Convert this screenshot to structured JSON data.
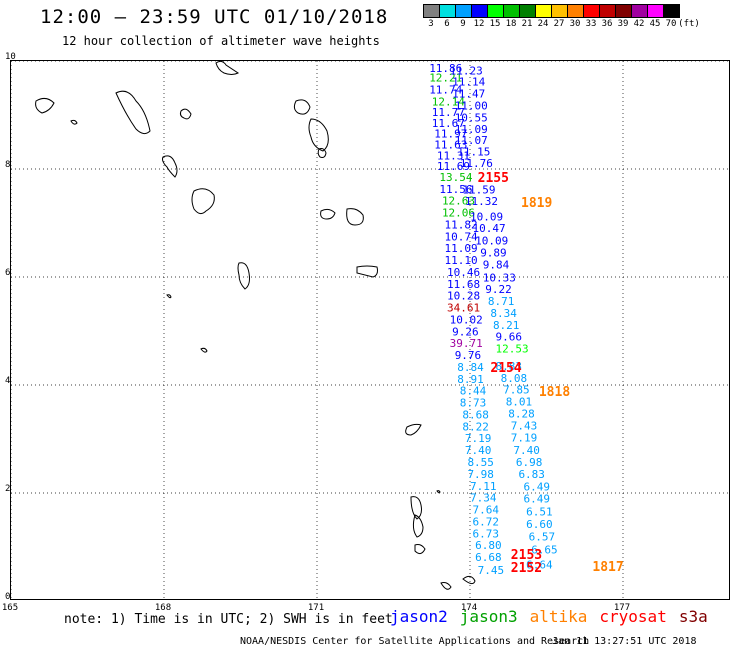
{
  "header": {
    "title": "12:00 – 23:59 UTC 01/10/2018",
    "subtitle": "12 hour collection of altimeter wave heights"
  },
  "legend": {
    "unit": "(ft)",
    "bins": [
      {
        "label": "3",
        "color": "#808080"
      },
      {
        "label": "6",
        "color": "#00e0e0"
      },
      {
        "label": "9",
        "color": "#00a0ff"
      },
      {
        "label": "12",
        "color": "#0000ff"
      },
      {
        "label": "15",
        "color": "#00ff00"
      },
      {
        "label": "18",
        "color": "#00c000"
      },
      {
        "label": "21",
        "color": "#008000"
      },
      {
        "label": "24",
        "color": "#ffff00"
      },
      {
        "label": "27",
        "color": "#ffc000"
      },
      {
        "label": "30",
        "color": "#ff8000"
      },
      {
        "label": "33",
        "color": "#ff0000"
      },
      {
        "label": "36",
        "color": "#c00000"
      },
      {
        "label": "39",
        "color": "#800000"
      },
      {
        "label": "42",
        "color": "#a000a0"
      },
      {
        "label": "45",
        "color": "#ff00ff"
      },
      {
        "label": "70",
        "color": "#000000"
      }
    ]
  },
  "axes": {
    "lon_labels": [
      "165",
      "168",
      "171",
      "174",
      "177"
    ],
    "lat_labels": [
      "0",
      "2",
      "4",
      "6",
      "8",
      "10"
    ],
    "lon_range": [
      165,
      179
    ],
    "lat_range": [
      0,
      10
    ],
    "grid": "dotted"
  },
  "tracks": {
    "left": [
      {
        "v": "11.86",
        "lat": 9.8,
        "c": "#0000ff",
        "lon": 173.2
      },
      {
        "v": "12.21",
        "lat": 9.62,
        "c": "#00c000",
        "lon": 173.2
      },
      {
        "v": "11.74",
        "lat": 9.4,
        "c": "#0000ff",
        "lon": 173.2
      },
      {
        "v": "12.14",
        "lat": 9.18,
        "c": "#00c000",
        "lon": 173.25
      },
      {
        "v": "11.77",
        "lat": 8.98,
        "c": "#0000ff",
        "lon": 173.25
      },
      {
        "v": "11.67",
        "lat": 8.78,
        "c": "#0000ff",
        "lon": 173.25
      },
      {
        "v": "11.97",
        "lat": 8.58,
        "c": "#0000ff",
        "lon": 173.3
      },
      {
        "v": "11.63",
        "lat": 8.38,
        "c": "#0000ff",
        "lon": 173.3
      },
      {
        "v": "11.31",
        "lat": 8.18,
        "c": "#0000ff",
        "lon": 173.35
      },
      {
        "v": "11.69",
        "lat": 7.98,
        "c": "#0000ff",
        "lon": 173.35
      },
      {
        "v": "13.54",
        "lat": 7.78,
        "c": "#00c000",
        "lon": 173.4
      },
      {
        "v": "11.56",
        "lat": 7.56,
        "c": "#0000ff",
        "lon": 173.4
      },
      {
        "v": "12.63",
        "lat": 7.34,
        "c": "#00c000",
        "lon": 173.45
      },
      {
        "v": "12.06",
        "lat": 7.12,
        "c": "#00c000",
        "lon": 173.45
      },
      {
        "v": "11.82",
        "lat": 6.9,
        "c": "#0000ff",
        "lon": 173.5
      },
      {
        "v": "10.74",
        "lat": 6.68,
        "c": "#0000ff",
        "lon": 173.5
      },
      {
        "v": "11.09",
        "lat": 6.46,
        "c": "#0000ff",
        "lon": 173.5
      },
      {
        "v": "11.10",
        "lat": 6.24,
        "c": "#0000ff",
        "lon": 173.5
      },
      {
        "v": "10.46",
        "lat": 6.02,
        "c": "#0000ff",
        "lon": 173.55
      },
      {
        "v": "11.68",
        "lat": 5.8,
        "c": "#0000ff",
        "lon": 173.55
      },
      {
        "v": "10.28",
        "lat": 5.58,
        "c": "#0000ff",
        "lon": 173.55
      },
      {
        "v": "34.61",
        "lat": 5.36,
        "c": "#c00000",
        "lon": 173.55
      },
      {
        "v": "10.02",
        "lat": 5.14,
        "c": "#0000ff",
        "lon": 173.6
      },
      {
        "v": "9.26",
        "lat": 4.92,
        "c": "#0000ff",
        "lon": 173.65
      },
      {
        "v": "39.71",
        "lat": 4.7,
        "c": "#a000a0",
        "lon": 173.6
      },
      {
        "v": "9.76",
        "lat": 4.48,
        "c": "#0000ff",
        "lon": 173.7
      },
      {
        "v": "8.84",
        "lat": 4.26,
        "c": "#00a0ff",
        "lon": 173.75
      },
      {
        "v": "8.91",
        "lat": 4.04,
        "c": "#00a0ff",
        "lon": 173.75
      },
      {
        "v": "8.44",
        "lat": 3.82,
        "c": "#00a0ff",
        "lon": 173.8
      },
      {
        "v": "8.73",
        "lat": 3.6,
        "c": "#00a0ff",
        "lon": 173.8
      },
      {
        "v": "8.68",
        "lat": 3.38,
        "c": "#00a0ff",
        "lon": 173.85
      },
      {
        "v": "8.22",
        "lat": 3.16,
        "c": "#00a0ff",
        "lon": 173.85
      },
      {
        "v": "7.19",
        "lat": 2.94,
        "c": "#00a0ff",
        "lon": 173.9
      },
      {
        "v": "7.40",
        "lat": 2.72,
        "c": "#00a0ff",
        "lon": 173.9
      },
      {
        "v": "8.55",
        "lat": 2.5,
        "c": "#00a0ff",
        "lon": 173.95
      },
      {
        "v": "7.98",
        "lat": 2.28,
        "c": "#00a0ff",
        "lon": 173.95
      },
      {
        "v": "7.11",
        "lat": 2.06,
        "c": "#00a0ff",
        "lon": 174.0
      },
      {
        "v": "7.34",
        "lat": 1.84,
        "c": "#00a0ff",
        "lon": 174.0
      },
      {
        "v": "7.64",
        "lat": 1.62,
        "c": "#00a0ff",
        "lon": 174.05
      },
      {
        "v": "6.72",
        "lat": 1.4,
        "c": "#00a0ff",
        "lon": 174.05
      },
      {
        "v": "6.73",
        "lat": 1.18,
        "c": "#00a0ff",
        "lon": 174.05
      },
      {
        "v": "6.80",
        "lat": 0.96,
        "c": "#00a0ff",
        "lon": 174.1
      },
      {
        "v": "6.68",
        "lat": 0.74,
        "c": "#00a0ff",
        "lon": 174.1
      },
      {
        "v": "7.45",
        "lat": 0.5,
        "c": "#00a0ff",
        "lon": 174.15
      }
    ],
    "right": [
      {
        "v": "11.23",
        "lat": 9.75,
        "c": "#0000ff",
        "lon": 173.6
      },
      {
        "v": "11.14",
        "lat": 9.55,
        "c": "#0000ff",
        "lon": 173.65
      },
      {
        "v": "11.47",
        "lat": 9.32,
        "c": "#0000ff",
        "lon": 173.65
      },
      {
        "v": "11.00",
        "lat": 9.1,
        "c": "#0000ff",
        "lon": 173.7
      },
      {
        "v": "10.55",
        "lat": 8.88,
        "c": "#0000ff",
        "lon": 173.7
      },
      {
        "v": "11.09",
        "lat": 8.67,
        "c": "#0000ff",
        "lon": 173.7
      },
      {
        "v": "11.07",
        "lat": 8.46,
        "c": "#0000ff",
        "lon": 173.7
      },
      {
        "v": "11.15",
        "lat": 8.25,
        "c": "#0000ff",
        "lon": 173.75
      },
      {
        "v": "11.76",
        "lat": 8.04,
        "c": "#0000ff",
        "lon": 173.8
      },
      {
        "v": "11.59",
        "lat": 7.55,
        "c": "#0000ff",
        "lon": 173.85
      },
      {
        "v": "11.32",
        "lat": 7.33,
        "c": "#0000ff",
        "lon": 173.9
      },
      {
        "v": "10.09",
        "lat": 7.05,
        "c": "#0000ff",
        "lon": 174.0
      },
      {
        "v": "10.47",
        "lat": 6.83,
        "c": "#0000ff",
        "lon": 174.05
      },
      {
        "v": "10.09",
        "lat": 6.6,
        "c": "#0000ff",
        "lon": 174.1
      },
      {
        "v": "9.89",
        "lat": 6.38,
        "c": "#0000ff",
        "lon": 174.2
      },
      {
        "v": "9.84",
        "lat": 6.16,
        "c": "#0000ff",
        "lon": 174.25
      },
      {
        "v": "10.33",
        "lat": 5.92,
        "c": "#0000ff",
        "lon": 174.25
      },
      {
        "v": "9.22",
        "lat": 5.7,
        "c": "#0000ff",
        "lon": 174.3
      },
      {
        "v": "8.71",
        "lat": 5.48,
        "c": "#00a0ff",
        "lon": 174.35
      },
      {
        "v": "8.34",
        "lat": 5.26,
        "c": "#00a0ff",
        "lon": 174.4
      },
      {
        "v": "8.21",
        "lat": 5.04,
        "c": "#00a0ff",
        "lon": 174.45
      },
      {
        "v": "9.66",
        "lat": 4.82,
        "c": "#0000ff",
        "lon": 174.5
      },
      {
        "v": "12.53",
        "lat": 4.6,
        "c": "#00ff00",
        "lon": 174.5
      },
      {
        "v": "8.83",
        "lat": 4.28,
        "c": "#00a0ff",
        "lon": 174.5
      },
      {
        "v": "8.08",
        "lat": 4.06,
        "c": "#00a0ff",
        "lon": 174.6
      },
      {
        "v": "7.85",
        "lat": 3.84,
        "c": "#00a0ff",
        "lon": 174.65
      },
      {
        "v": "8.01",
        "lat": 3.62,
        "c": "#00a0ff",
        "lon": 174.7
      },
      {
        "v": "8.28",
        "lat": 3.4,
        "c": "#00a0ff",
        "lon": 174.75
      },
      {
        "v": "7.43",
        "lat": 3.18,
        "c": "#00a0ff",
        "lon": 174.8
      },
      {
        "v": "7.19",
        "lat": 2.95,
        "c": "#00a0ff",
        "lon": 174.8
      },
      {
        "v": "7.40",
        "lat": 2.72,
        "c": "#00a0ff",
        "lon": 174.85
      },
      {
        "v": "6.98",
        "lat": 2.5,
        "c": "#00a0ff",
        "lon": 174.9
      },
      {
        "v": "6.83",
        "lat": 2.28,
        "c": "#00a0ff",
        "lon": 174.95
      },
      {
        "v": "6.49",
        "lat": 2.05,
        "c": "#00a0ff",
        "lon": 175.05
      },
      {
        "v": "6.49",
        "lat": 1.82,
        "c": "#00a0ff",
        "lon": 175.05
      },
      {
        "v": "6.51",
        "lat": 1.58,
        "c": "#00a0ff",
        "lon": 175.1
      },
      {
        "v": "6.60",
        "lat": 1.35,
        "c": "#00a0ff",
        "lon": 175.1
      },
      {
        "v": "6.57",
        "lat": 1.12,
        "c": "#00a0ff",
        "lon": 175.15
      },
      {
        "v": "6.65",
        "lat": 0.88,
        "c": "#00a0ff",
        "lon": 175.2
      },
      {
        "v": "6.64",
        "lat": 0.6,
        "c": "#00a0ff",
        "lon": 175.1
      }
    ]
  },
  "pass_labels": [
    {
      "text": "2155",
      "lat": 7.76,
      "lon": 174.15,
      "c": "#ff0000"
    },
    {
      "text": "1819",
      "lat": 7.3,
      "lon": 175.0,
      "c": "#ff8000"
    },
    {
      "text": "2154",
      "lat": 4.24,
      "lon": 174.4,
      "c": "#ff0000"
    },
    {
      "text": "1818",
      "lat": 3.8,
      "lon": 175.35,
      "c": "#ff8000"
    },
    {
      "text": "2153",
      "lat": 0.78,
      "lon": 174.8,
      "c": "#ff0000"
    },
    {
      "text": "2152",
      "lat": 0.54,
      "lon": 174.8,
      "c": "#ff0000"
    },
    {
      "text": "1817",
      "lat": 0.56,
      "lon": 176.4,
      "c": "#ff8000"
    }
  ],
  "footer": {
    "note": "note: 1) Time is in UTC; 2) SWH is in feet",
    "satellites": [
      {
        "name": "jason2",
        "color": "#0000ff"
      },
      {
        "name": "jason3",
        "color": "#00a000"
      },
      {
        "name": "altika",
        "color": "#ff8000"
      },
      {
        "name": "cryosat",
        "color": "#ff0000"
      },
      {
        "name": "s3a",
        "color": "#800000"
      }
    ],
    "credit": "NOAA/NESDIS Center for Satellite Applications and Research",
    "timestamp": "Jan 11 13:27:51 UTC 2018"
  }
}
